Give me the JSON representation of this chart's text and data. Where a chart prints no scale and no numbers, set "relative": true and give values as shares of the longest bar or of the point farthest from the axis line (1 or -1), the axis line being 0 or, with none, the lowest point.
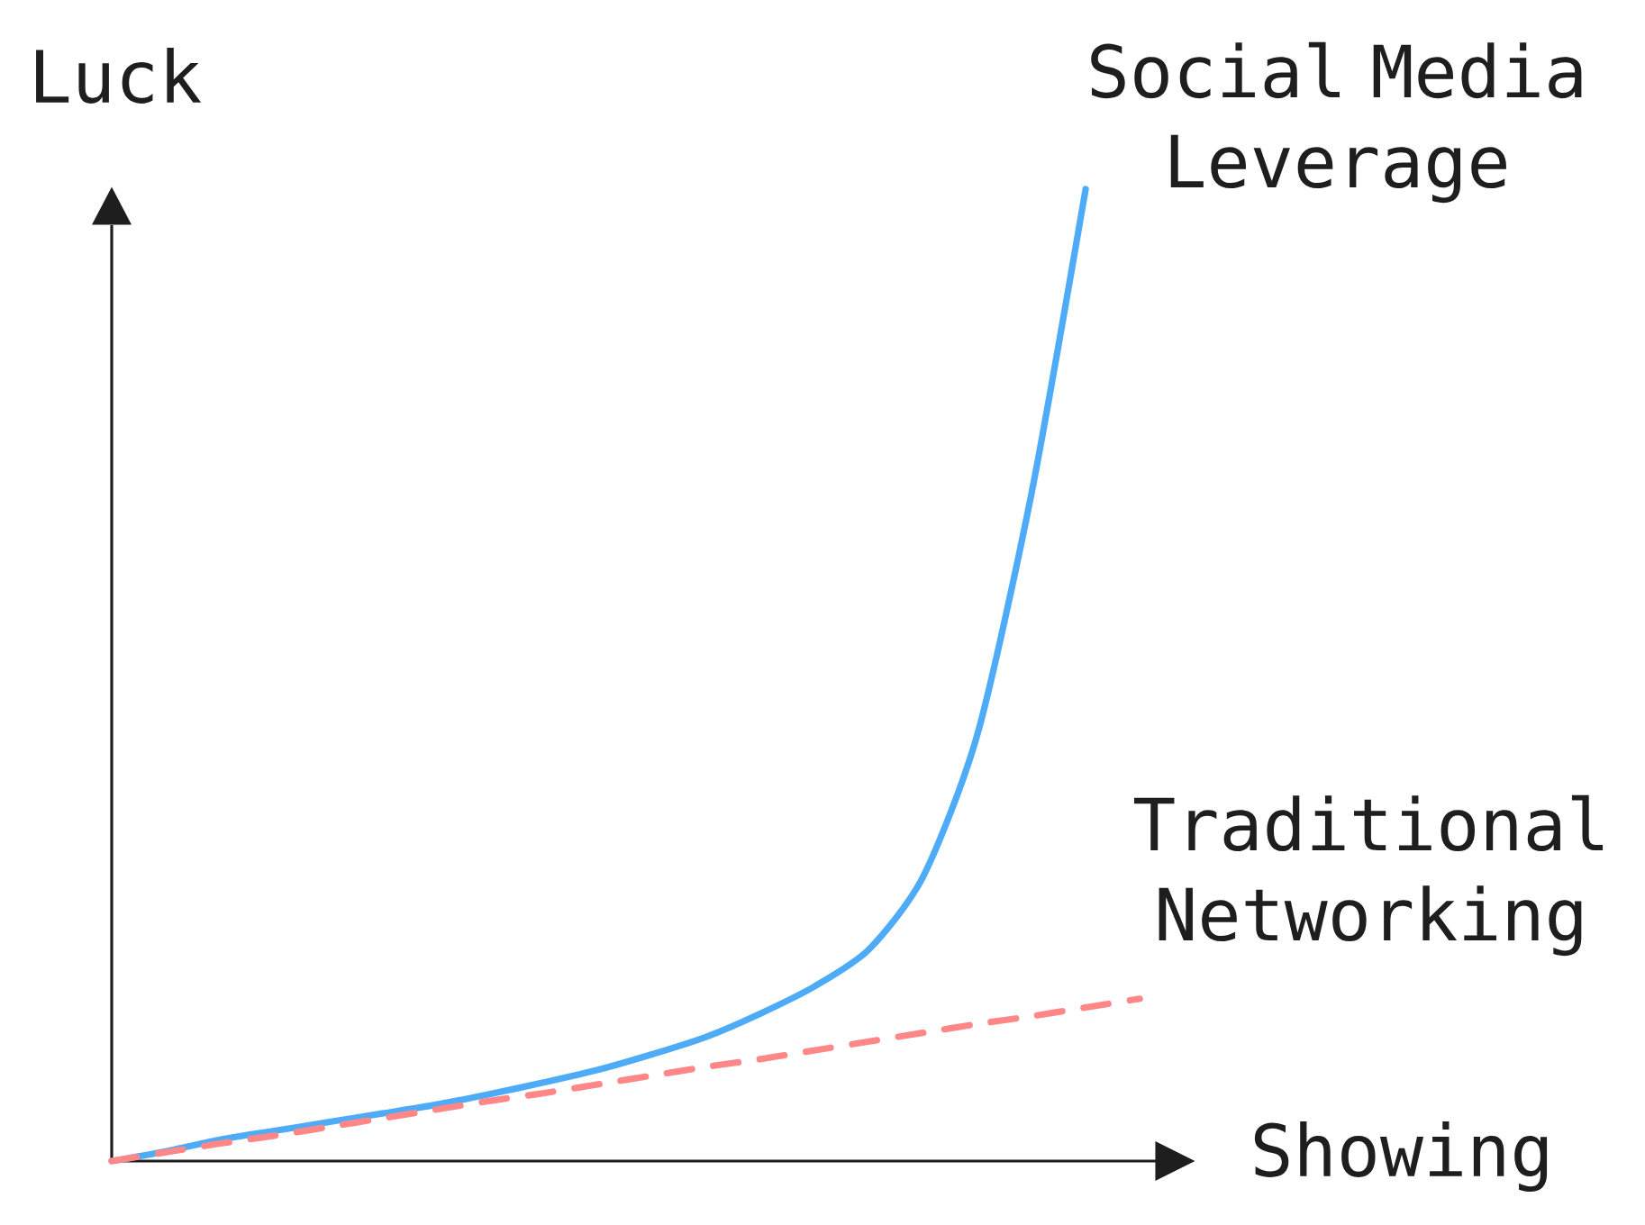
{
  "chart_data": {
    "type": "line",
    "relative": true,
    "xlabel": "Showing",
    "ylabel": "Luck",
    "categories": [
      null,
      null,
      null,
      null,
      null,
      null,
      null,
      null,
      null,
      null,
      null,
      null,
      null,
      null,
      null,
      null,
      null,
      null,
      null,
      null
    ],
    "series": [
      {
        "name": "Social Media Leverage",
        "color": "#4dabf7",
        "line_style": "solid",
        "values": [
          0,
          0.01,
          0.022,
          0.031,
          0.04,
          0.049,
          0.058,
          0.069,
          0.081,
          0.094,
          0.11,
          0.128,
          0.152,
          0.18,
          0.218,
          0.293,
          0.439,
          0.687,
          1.0,
          null
        ]
      },
      {
        "name": "Traditional Networking",
        "color": "#ff8787",
        "line_style": "dashed",
        "values": [
          0,
          0.009,
          0.018,
          0.026,
          0.035,
          0.044,
          0.053,
          0.062,
          0.07,
          0.079,
          0.088,
          0.097,
          0.105,
          0.114,
          0.123,
          0.132,
          0.141,
          0.149,
          0.158,
          0.167
        ]
      }
    ]
  }
}
